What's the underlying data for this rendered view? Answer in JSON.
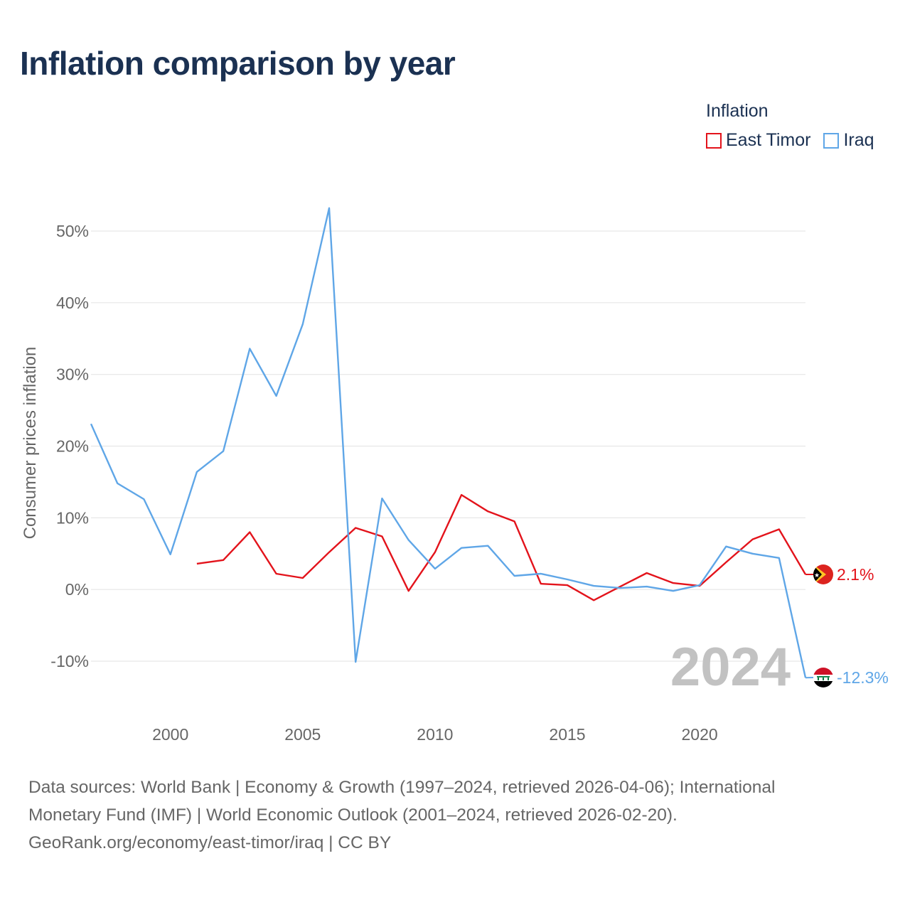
{
  "title": "Inflation comparison by year",
  "legend": {
    "title": "Inflation",
    "items": [
      {
        "label": "East Timor",
        "color": "#e3131b"
      },
      {
        "label": "Iraq",
        "color": "#5fa6e7"
      }
    ]
  },
  "chart_data": {
    "type": "line",
    "title": "Inflation comparison by year",
    "xlabel": "",
    "ylabel": "Consumer prices inflation",
    "xlim": [
      1997,
      2024
    ],
    "ylim": [
      -10,
      50
    ],
    "x_ticks": [
      2000,
      2005,
      2010,
      2015,
      2020
    ],
    "x_tick_labels": [
      "2000",
      "2005",
      "2010",
      "2015",
      "2020"
    ],
    "y_ticks": [
      -10,
      0,
      10,
      20,
      30,
      40,
      50
    ],
    "y_tick_labels": [
      "-10%",
      "0%",
      "10%",
      "20%",
      "30%",
      "40%",
      "50%"
    ],
    "grid": true,
    "legend_position": "top-right",
    "watermark_year": "2024",
    "series": [
      {
        "name": "East Timor",
        "color": "#e3131b",
        "x": [
          2001,
          2002,
          2003,
          2004,
          2005,
          2006,
          2007,
          2008,
          2009,
          2010,
          2011,
          2012,
          2013,
          2014,
          2015,
          2016,
          2017,
          2018,
          2019,
          2020,
          2021,
          2022,
          2023,
          2024
        ],
        "values": [
          3.6,
          4.1,
          8.0,
          2.2,
          1.6,
          5.2,
          8.6,
          7.4,
          -0.2,
          5.2,
          13.2,
          10.9,
          9.5,
          0.8,
          0.6,
          -1.5,
          0.4,
          2.3,
          0.9,
          0.5,
          3.8,
          7.0,
          8.4,
          2.1
        ],
        "end_label": "2.1%"
      },
      {
        "name": "Iraq",
        "color": "#5fa6e7",
        "x": [
          1997,
          1998,
          1999,
          2000,
          2001,
          2002,
          2003,
          2004,
          2005,
          2006,
          2007,
          2008,
          2009,
          2010,
          2011,
          2012,
          2013,
          2014,
          2015,
          2016,
          2017,
          2018,
          2019,
          2020,
          2021,
          2022,
          2023,
          2024
        ],
        "values": [
          23.1,
          14.8,
          12.6,
          4.9,
          16.4,
          19.3,
          33.6,
          27.0,
          37.0,
          53.2,
          -10.1,
          12.7,
          6.9,
          2.9,
          5.8,
          6.1,
          1.9,
          2.2,
          1.4,
          0.5,
          0.2,
          0.4,
          -0.2,
          0.6,
          6.0,
          5.0,
          4.4,
          -12.3
        ],
        "end_label": "-12.3%"
      }
    ]
  },
  "footer": {
    "line1": "Data sources: World Bank | Economy & Growth (1997–2024, retrieved 2026-04-06); International",
    "line2": "Monetary Fund (IMF) | World Economic Outlook (2001–2024, retrieved 2026-02-20).",
    "line3": "GeoRank.org/economy/east-timor/iraq | CC BY"
  }
}
